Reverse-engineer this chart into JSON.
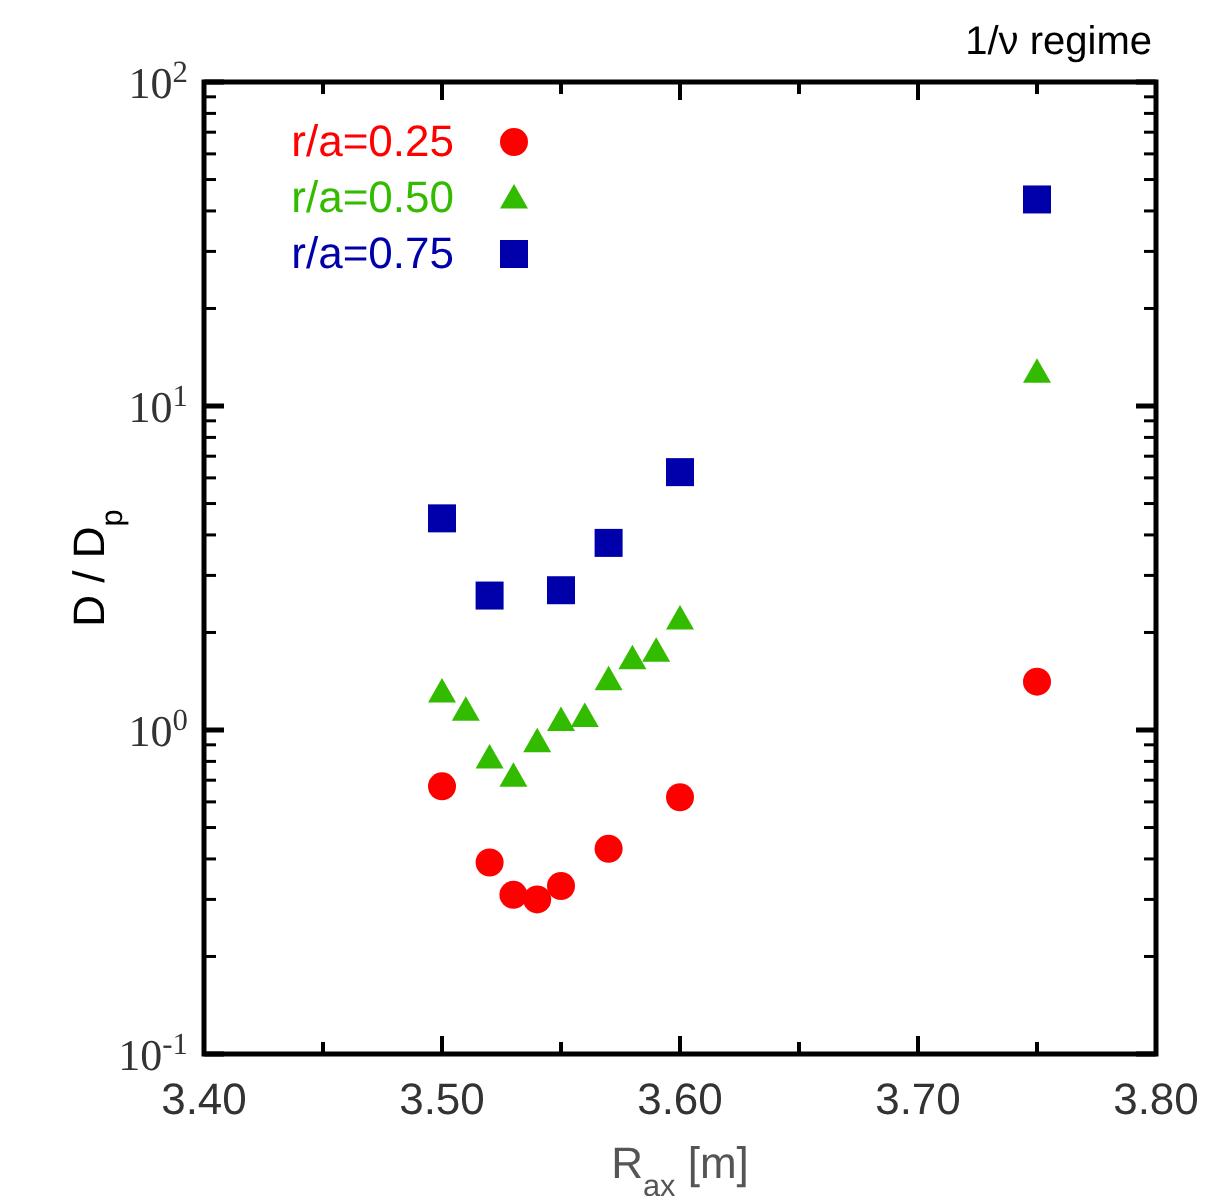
{
  "chart_data": {
    "type": "scatter",
    "xlabel": "R$_{ax}$ [m]",
    "ylabel": "D / D$_{p}$",
    "log": "y",
    "legend": "top left",
    "grid": false,
    "xlim": [
      3.4,
      3.8
    ],
    "ylim": [
      0.1,
      100
    ],
    "xticks": [
      {
        "value": 3.4,
        "label": "3.40"
      },
      {
        "value": 3.45,
        "label": null
      },
      {
        "value": 3.5,
        "label": "3.50"
      },
      {
        "value": 3.55,
        "label": null
      },
      {
        "value": 3.6,
        "label": "3.60"
      },
      {
        "value": 3.65,
        "label": null
      },
      {
        "value": 3.7,
        "label": "3.70"
      },
      {
        "value": 3.75,
        "label": null
      },
      {
        "value": 3.8,
        "label": "3.80"
      }
    ],
    "yticks": [
      {
        "value": 0.1,
        "label": "10$^{-1}$"
      },
      {
        "value": 1,
        "label": "10$^{0}$"
      },
      {
        "value": 10,
        "label": "10$^{1}$"
      },
      {
        "value": 100,
        "label": "10$^{2}$"
      }
    ],
    "series": [
      {
        "name": "r/a=0.25",
        "color": "#ff0000",
        "marker": "circle",
        "x": [
          3.5,
          3.52,
          3.53,
          3.54,
          3.55,
          3.57,
          3.6,
          3.75
        ],
        "values": [
          0.67,
          0.39,
          0.31,
          0.3,
          0.33,
          0.43,
          0.62,
          1.41
        ]
      },
      {
        "name": "r/a=0.50",
        "color": "#33bb00",
        "marker": "triangle",
        "x": [
          3.5,
          3.51,
          3.52,
          3.53,
          3.54,
          3.55,
          3.56,
          3.57,
          3.58,
          3.59,
          3.6,
          3.75
        ],
        "values": [
          1.31,
          1.15,
          0.82,
          0.72,
          0.92,
          1.07,
          1.1,
          1.43,
          1.66,
          1.75,
          2.2,
          12.7
        ]
      },
      {
        "name": "r/a=0.75",
        "color": "#0000aa",
        "marker": "square",
        "x": [
          3.5,
          3.52,
          3.55,
          3.57,
          3.6,
          3.75
        ],
        "values": [
          4.5,
          2.6,
          2.7,
          3.78,
          6.25,
          43.4
        ]
      }
    ],
    "annotations": [
      "1/ν  regime"
    ]
  }
}
